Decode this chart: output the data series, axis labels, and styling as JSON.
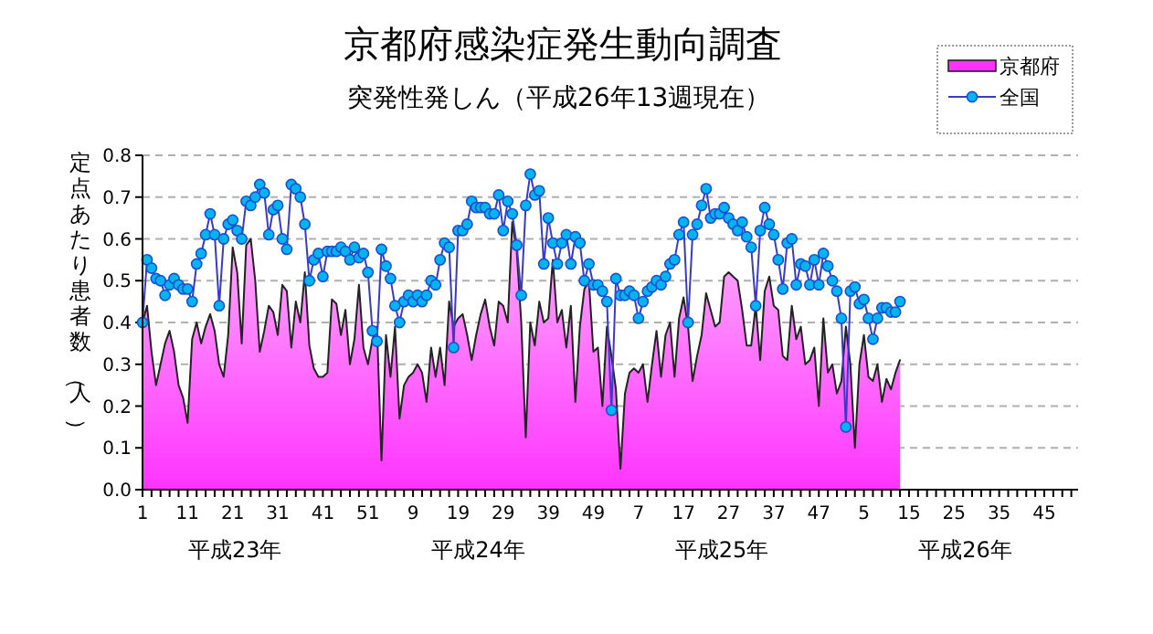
{
  "chart_data": {
    "type": "area",
    "title": "京都府感染症発生動向調査",
    "subtitle": "突発性発しん（平成26年13週現在）",
    "ylabel": "定点あたり患者数（人）",
    "annotations": [
      "平成23年",
      "平成24年",
      "平成25年",
      "平成26年"
    ],
    "categories": [
      "1",
      null,
      null,
      null,
      null,
      null,
      null,
      null,
      null,
      null,
      "11",
      null,
      null,
      null,
      null,
      null,
      null,
      null,
      null,
      null,
      "21",
      null,
      null,
      null,
      null,
      null,
      null,
      null,
      null,
      null,
      "31",
      null,
      null,
      null,
      null,
      null,
      null,
      null,
      null,
      null,
      "41",
      null,
      null,
      null,
      null,
      null,
      null,
      null,
      null,
      null,
      "51",
      null,
      null,
      null,
      null,
      null,
      null,
      null,
      null,
      null,
      "9",
      null,
      null,
      null,
      null,
      null,
      null,
      null,
      null,
      null,
      "19",
      null,
      null,
      null,
      null,
      null,
      null,
      null,
      null,
      null,
      "29",
      null,
      null,
      null,
      null,
      null,
      null,
      null,
      null,
      null,
      "39",
      null,
      null,
      null,
      null,
      null,
      null,
      null,
      null,
      null,
      "49",
      null,
      null,
      null,
      null,
      null,
      null,
      null,
      null,
      null,
      "7",
      null,
      null,
      null,
      null,
      null,
      null,
      null,
      null,
      null,
      "17",
      null,
      null,
      null,
      null,
      null,
      null,
      null,
      null,
      null,
      "27",
      null,
      null,
      null,
      null,
      null,
      null,
      null,
      null,
      null,
      "37",
      null,
      null,
      null,
      null,
      null,
      null,
      null,
      null,
      null,
      "47",
      null,
      null,
      null,
      null,
      null,
      null,
      null,
      null,
      null,
      "5",
      null,
      null,
      null,
      null,
      null,
      null,
      null,
      null,
      null,
      "15",
      null,
      null,
      null,
      null,
      null,
      null,
      null,
      null,
      null,
      "25",
      null,
      null,
      null,
      null,
      null,
      null,
      null,
      null,
      null,
      "35",
      null,
      null,
      null,
      null,
      null,
      null,
      null,
      null,
      null,
      "45",
      null,
      null,
      null,
      null,
      null,
      null,
      null
    ],
    "series": [
      {
        "name": "京都府",
        "color": "#ff33ff",
        "values": [
          0.4,
          0.44,
          0.33,
          0.25,
          0.3,
          0.35,
          0.38,
          0.33,
          0.25,
          0.22,
          0.16,
          0.36,
          0.4,
          0.35,
          0.39,
          0.42,
          0.38,
          0.3,
          0.27,
          0.37,
          0.58,
          0.52,
          0.35,
          0.585,
          0.6,
          0.5,
          0.33,
          0.38,
          0.44,
          0.425,
          0.37,
          0.49,
          0.475,
          0.34,
          0.45,
          0.4,
          0.52,
          0.345,
          0.29,
          0.27,
          0.27,
          0.28,
          0.455,
          0.445,
          0.37,
          0.43,
          0.3,
          0.36,
          0.49,
          0.34,
          0.3,
          0.36,
          0.39,
          0.07,
          0.37,
          0.27,
          0.39,
          0.17,
          0.25,
          0.27,
          0.28,
          0.3,
          0.28,
          0.21,
          0.34,
          0.27,
          0.34,
          0.25,
          0.45,
          0.39,
          0.41,
          0.42,
          0.37,
          0.31,
          0.37,
          0.42,
          0.455,
          0.39,
          0.345,
          0.45,
          0.44,
          0.4,
          0.64,
          0.57,
          0.4,
          0.125,
          0.4,
          0.345,
          0.45,
          0.4,
          0.41,
          0.55,
          0.4,
          0.43,
          0.34,
          0.44,
          0.21,
          0.39,
          0.48,
          0.5,
          0.33,
          0.34,
          0.2,
          0.39,
          0.32,
          0.24,
          0.05,
          0.23,
          0.28,
          0.29,
          0.28,
          0.3,
          0.21,
          0.3,
          0.38,
          0.27,
          0.37,
          0.4,
          0.27,
          0.41,
          0.46,
          0.39,
          0.26,
          0.32,
          0.37,
          0.47,
          0.43,
          0.39,
          0.4,
          0.51,
          0.52,
          0.51,
          0.5,
          0.43,
          0.345,
          0.345,
          0.44,
          0.31,
          0.475,
          0.51,
          0.44,
          0.43,
          0.32,
          0.31,
          0.44,
          0.36,
          0.39,
          0.3,
          0.31,
          0.34,
          0.2,
          0.41,
          0.28,
          0.3,
          0.23,
          0.26,
          0.39,
          0.3,
          0.1,
          0.3,
          0.37,
          0.27,
          0.26,
          0.3,
          0.21,
          0.265,
          0.24,
          0.28,
          0.31,
          null,
          null,
          null,
          null,
          null,
          null,
          null,
          null,
          null,
          null,
          null,
          null,
          null,
          null,
          null,
          null,
          null,
          null,
          null,
          null,
          null,
          null,
          null,
          null,
          null,
          null,
          null,
          null,
          null,
          null,
          null,
          null,
          null,
          null,
          null,
          null,
          null,
          null,
          null
        ]
      },
      {
        "name": "全国",
        "type": "line",
        "color": "#00b4f0",
        "marker": "circle",
        "values": [
          0.4,
          0.55,
          0.53,
          0.505,
          0.5,
          0.465,
          0.49,
          0.505,
          0.49,
          0.48,
          0.48,
          0.45,
          0.54,
          0.565,
          0.61,
          0.66,
          0.61,
          0.44,
          0.6,
          0.635,
          0.645,
          0.62,
          0.6,
          0.69,
          0.68,
          0.7,
          0.73,
          0.71,
          0.61,
          0.67,
          0.68,
          0.6,
          0.575,
          0.73,
          0.72,
          0.7,
          0.635,
          0.5,
          0.55,
          0.565,
          0.51,
          0.57,
          0.57,
          0.57,
          0.58,
          0.57,
          0.55,
          0.58,
          0.555,
          0.565,
          0.52,
          0.38,
          0.355,
          0.575,
          0.535,
          0.505,
          0.44,
          0.4,
          0.45,
          0.465,
          0.45,
          0.465,
          0.45,
          0.465,
          0.5,
          0.49,
          0.55,
          0.59,
          0.58,
          0.34,
          0.62,
          0.62,
          0.635,
          0.69,
          0.675,
          0.675,
          0.675,
          0.66,
          0.66,
          0.705,
          0.62,
          0.69,
          0.66,
          0.585,
          0.465,
          0.68,
          0.755,
          0.705,
          0.715,
          0.54,
          0.65,
          0.59,
          0.54,
          0.59,
          0.61,
          0.54,
          0.605,
          0.59,
          0.5,
          0.54,
          0.49,
          0.49,
          0.475,
          0.45,
          0.19,
          0.505,
          0.465,
          0.465,
          0.475,
          0.465,
          0.41,
          0.45,
          0.475,
          0.485,
          0.5,
          0.49,
          0.51,
          0.54,
          0.55,
          0.61,
          0.64,
          0.4,
          0.61,
          0.635,
          0.68,
          0.72,
          0.65,
          0.66,
          0.66,
          0.675,
          0.65,
          0.635,
          0.62,
          0.64,
          0.605,
          0.58,
          0.44,
          0.62,
          0.675,
          0.635,
          0.61,
          0.55,
          0.48,
          0.59,
          0.6,
          0.49,
          0.54,
          0.535,
          0.49,
          0.55,
          0.49,
          0.565,
          0.535,
          0.5,
          0.475,
          0.41,
          0.15,
          0.475,
          0.485,
          0.445,
          0.455,
          0.41,
          0.36,
          0.41,
          0.435,
          0.435,
          0.425,
          0.425,
          0.45,
          null,
          null,
          null,
          null,
          null,
          null,
          null,
          null,
          null,
          null,
          null,
          null,
          null,
          null,
          null,
          null,
          null,
          null,
          null,
          null,
          null,
          null,
          null,
          null,
          null,
          null,
          null,
          null,
          null,
          null,
          null,
          null,
          null,
          null,
          null,
          null,
          null,
          null,
          null
        ]
      }
    ],
    "ylim": [
      0,
      0.8
    ],
    "yticks": [
      {
        "value": 0,
        "label": "0.0"
      },
      {
        "value": 0.1,
        "label": "0.1"
      },
      {
        "value": 0.2,
        "label": "0.2"
      },
      {
        "value": 0.3,
        "label": "0.3"
      },
      {
        "value": 0.4,
        "label": "0.4"
      },
      {
        "value": 0.5,
        "label": "0.5"
      },
      {
        "value": 0.6,
        "label": "0.6"
      },
      {
        "value": 0.7,
        "label": "0.7"
      },
      {
        "value": 0.8,
        "label": "0.8"
      }
    ],
    "grid": "y",
    "legend": "top right"
  }
}
